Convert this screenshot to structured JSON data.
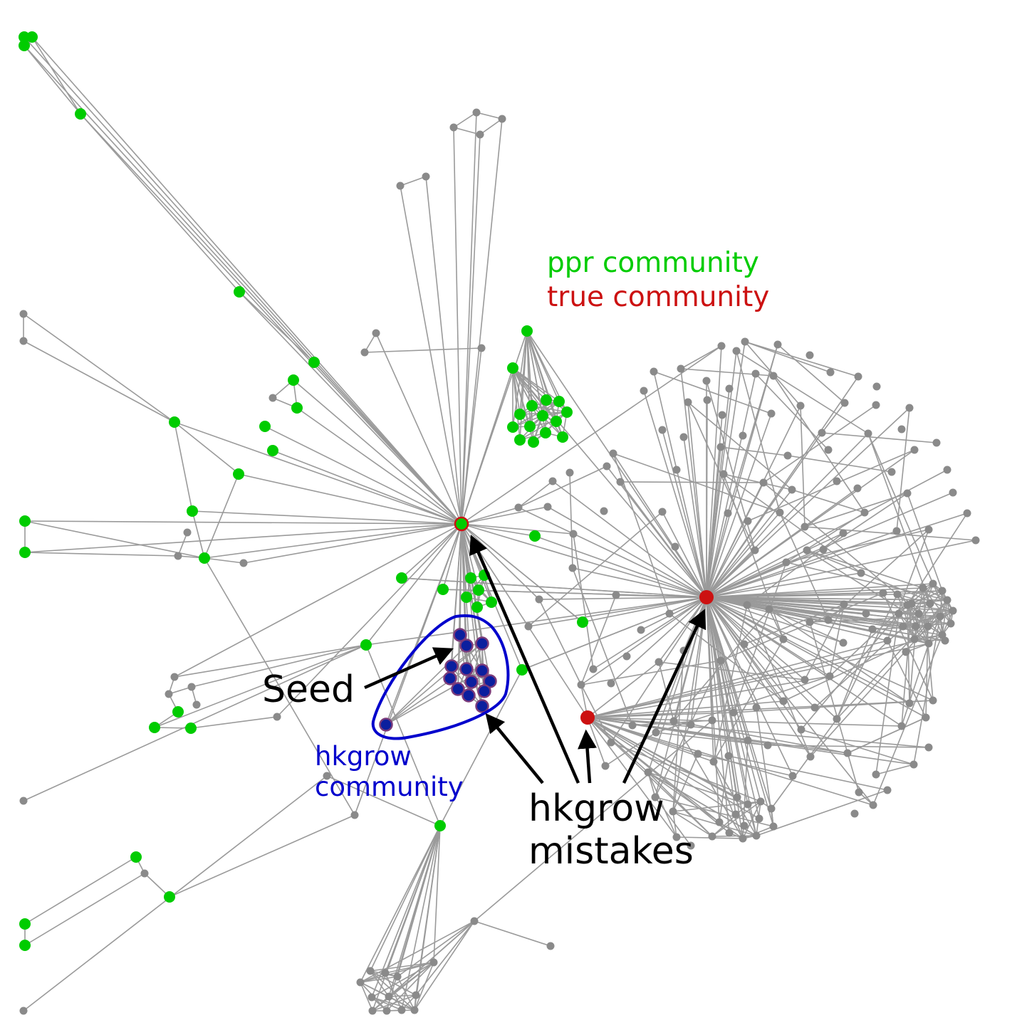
{
  "colors": {
    "ppr": "#00cc00",
    "true": "#cc1111",
    "hkgrow": "#0000cc",
    "annotation": "#000000",
    "edge": "#9a9a9a",
    "node": "#8a8a8a"
  },
  "legend": {
    "ppr": "ppr community",
    "true": "true community"
  },
  "annotations": {
    "seed": "Seed",
    "hkgrow_community": "hkgrow\ncommunity",
    "mistakes": "hkgrow\nmistakes"
  }
}
